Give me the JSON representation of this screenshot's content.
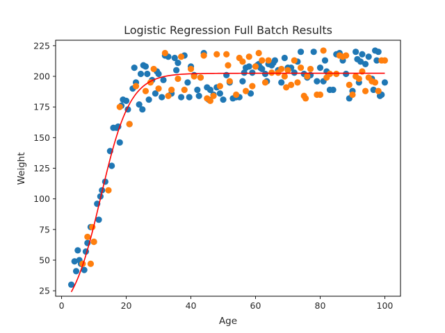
{
  "chart_data": {
    "type": "scatter",
    "title": "Logistic Regression Full Batch Results",
    "xlabel": "Age",
    "ylabel": "Weight",
    "xlim": [
      -1.85,
      104.85
    ],
    "ylim": [
      20.55,
      229.45
    ],
    "xticks": [
      0,
      20,
      40,
      60,
      80,
      100
    ],
    "yticks": [
      25,
      50,
      75,
      100,
      125,
      150,
      175,
      200,
      225
    ],
    "grid": false,
    "legend": "none",
    "colors": {
      "series_a": "#1f77b4",
      "series_b": "#ff7f0e",
      "fit": "#ff0000"
    },
    "series": [
      {
        "marker": "point",
        "color": "#1f77b4",
        "points": [
          [
            3,
            30
          ],
          [
            4,
            49
          ],
          [
            4.5,
            41
          ],
          [
            5,
            58
          ],
          [
            5.5,
            50
          ],
          [
            6,
            47
          ],
          [
            7,
            42
          ],
          [
            7.5,
            57
          ],
          [
            8,
            64
          ],
          [
            9,
            77
          ],
          [
            10,
            65
          ],
          [
            11,
            96
          ],
          [
            11.5,
            83
          ],
          [
            12,
            102
          ],
          [
            12.5,
            107
          ],
          [
            13.5,
            114
          ],
          [
            15,
            139
          ],
          [
            15.5,
            127
          ],
          [
            16,
            158
          ],
          [
            17,
            158
          ],
          [
            17.5,
            159
          ],
          [
            18,
            146
          ],
          [
            18.5,
            176
          ],
          [
            19,
            181
          ],
          [
            20,
            180
          ],
          [
            20.5,
            173
          ],
          [
            21,
            161
          ],
          [
            22,
            190
          ],
          [
            22.5,
            207
          ],
          [
            23,
            195
          ],
          [
            24,
            177
          ],
          [
            24.5,
            202
          ],
          [
            25,
            173
          ],
          [
            25.3,
            209
          ],
          [
            26,
            208
          ],
          [
            26.5,
            202
          ],
          [
            27,
            181
          ],
          [
            28,
            197
          ],
          [
            29,
            186
          ],
          [
            29.5,
            204
          ],
          [
            30,
            202
          ],
          [
            31,
            183
          ],
          [
            31.5,
            197
          ],
          [
            32,
            217
          ],
          [
            33,
            216
          ],
          [
            34,
            186
          ],
          [
            35,
            215
          ],
          [
            35.5,
            205
          ],
          [
            36,
            211
          ],
          [
            37,
            183
          ],
          [
            38,
            217
          ],
          [
            39,
            195
          ],
          [
            39.5,
            183
          ],
          [
            40,
            208
          ],
          [
            41,
            201
          ],
          [
            42,
            189
          ],
          [
            42.5,
            184
          ],
          [
            43,
            199
          ],
          [
            44,
            219
          ],
          [
            45,
            191
          ],
          [
            45.5,
            181
          ],
          [
            46,
            189
          ],
          [
            47,
            185
          ],
          [
            48,
            191
          ],
          [
            49,
            186
          ],
          [
            50,
            181
          ],
          [
            51,
            201
          ],
          [
            52,
            195
          ],
          [
            53,
            182
          ],
          [
            54,
            183
          ],
          [
            55,
            183
          ],
          [
            56,
            196
          ],
          [
            56.5,
            203
          ],
          [
            57,
            207
          ],
          [
            58,
            208
          ],
          [
            58.5,
            186
          ],
          [
            59,
            203
          ],
          [
            60,
            208
          ],
          [
            60.5,
            209
          ],
          [
            61,
            210
          ],
          [
            61.5,
            207
          ],
          [
            62,
            206
          ],
          [
            63,
            202
          ],
          [
            63.5,
            196
          ],
          [
            64,
            210
          ],
          [
            65,
            209
          ],
          [
            65.5,
            211
          ],
          [
            66,
            213
          ],
          [
            67,
            205
          ],
          [
            68,
            195
          ],
          [
            69,
            215
          ],
          [
            70,
            207
          ],
          [
            71,
            207
          ],
          [
            72,
            203
          ],
          [
            73,
            212
          ],
          [
            74,
            220
          ],
          [
            75,
            202
          ],
          [
            76,
            199
          ],
          [
            77,
            201
          ],
          [
            78,
            220
          ],
          [
            79,
            196
          ],
          [
            80,
            207
          ],
          [
            81,
            196
          ],
          [
            81.5,
            213
          ],
          [
            82,
            204
          ],
          [
            83,
            189
          ],
          [
            84,
            189
          ],
          [
            85,
            218
          ],
          [
            86,
            219
          ],
          [
            87,
            213
          ],
          [
            88,
            202
          ],
          [
            89,
            182
          ],
          [
            90,
            188
          ],
          [
            91,
            220
          ],
          [
            91.5,
            214
          ],
          [
            92,
            195
          ],
          [
            92.5,
            212
          ],
          [
            93,
            218
          ],
          [
            94,
            210
          ],
          [
            95,
            216
          ],
          [
            96,
            198
          ],
          [
            96.5,
            189
          ],
          [
            97,
            221
          ],
          [
            97.5,
            213
          ],
          [
            98,
            220
          ],
          [
            98.5,
            184
          ],
          [
            99,
            185
          ],
          [
            100,
            195
          ]
        ]
      },
      {
        "marker": "point",
        "color": "#ff7f0e",
        "points": [
          [
            6.5,
            47
          ],
          [
            8,
            69
          ],
          [
            9,
            47
          ],
          [
            9.5,
            77
          ],
          [
            10,
            65
          ],
          [
            14.5,
            107
          ],
          [
            18,
            175
          ],
          [
            21,
            161
          ],
          [
            23,
            192
          ],
          [
            26,
            188
          ],
          [
            27.5,
            195
          ],
          [
            28.5,
            206
          ],
          [
            30,
            190
          ],
          [
            32,
            219
          ],
          [
            33,
            184
          ],
          [
            34,
            189
          ],
          [
            36,
            198
          ],
          [
            37,
            216
          ],
          [
            38,
            189
          ],
          [
            40,
            206
          ],
          [
            41,
            200
          ],
          [
            43,
            199
          ],
          [
            44,
            217
          ],
          [
            45,
            182
          ],
          [
            46,
            180
          ],
          [
            47,
            184
          ],
          [
            48,
            218
          ],
          [
            49,
            192
          ],
          [
            51,
            218
          ],
          [
            51.5,
            209
          ],
          [
            52,
            196
          ],
          [
            54,
            185
          ],
          [
            55,
            215
          ],
          [
            56,
            212
          ],
          [
            57,
            188
          ],
          [
            58,
            216
          ],
          [
            59,
            192
          ],
          [
            60,
            208
          ],
          [
            61,
            219
          ],
          [
            62,
            213
          ],
          [
            63,
            195
          ],
          [
            64,
            213
          ],
          [
            65,
            203
          ],
          [
            67,
            203
          ],
          [
            68,
            206
          ],
          [
            69,
            200
          ],
          [
            69.5,
            191
          ],
          [
            70,
            205
          ],
          [
            71,
            193
          ],
          [
            72,
            213
          ],
          [
            73,
            195
          ],
          [
            74,
            207
          ],
          [
            75,
            184
          ],
          [
            75.5,
            182
          ],
          [
            76,
            200
          ],
          [
            77,
            206
          ],
          [
            79,
            185
          ],
          [
            80,
            185
          ],
          [
            81,
            221
          ],
          [
            82,
            199
          ],
          [
            83,
            202
          ],
          [
            85,
            202
          ],
          [
            86,
            217
          ],
          [
            87,
            216
          ],
          [
            88,
            217
          ],
          [
            89,
            193
          ],
          [
            90,
            185
          ],
          [
            91,
            200
          ],
          [
            92,
            198
          ],
          [
            93,
            204
          ],
          [
            94,
            188
          ],
          [
            95,
            199
          ],
          [
            96,
            196
          ],
          [
            97,
            195
          ],
          [
            98,
            188
          ],
          [
            99,
            213
          ],
          [
            100,
            213
          ]
        ]
      },
      {
        "marker": "line",
        "color": "#ff0000",
        "logistic": {
          "K": 202.5,
          "r": 0.22,
          "t0": 12.1,
          "x_start": 3,
          "x_end": 100
        }
      }
    ]
  }
}
